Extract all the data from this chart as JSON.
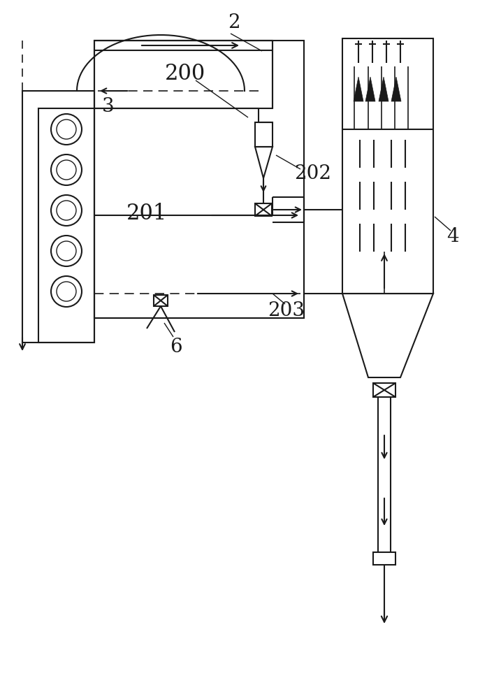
{
  "bg_color": "#ffffff",
  "line_color": "#1a1a1a",
  "label_2": "2",
  "label_3": "3",
  "label_4": "4",
  "label_6": "6",
  "label_200": "200",
  "label_201": "201",
  "label_202": "202",
  "label_203": "203",
  "lw_main": 1.5,
  "lw_thin": 1.0,
  "fs_label": 20
}
